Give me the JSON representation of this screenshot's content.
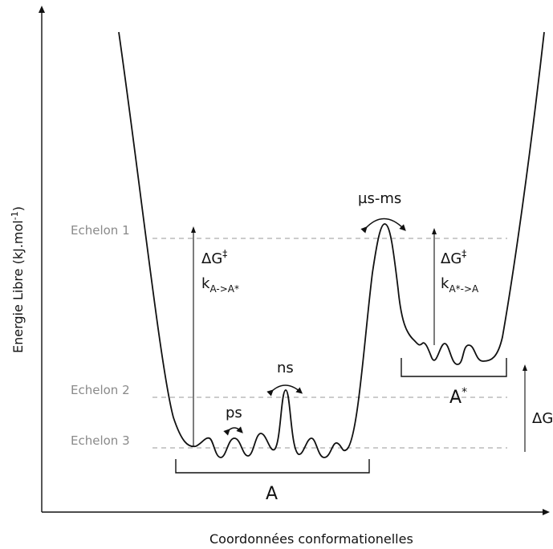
{
  "axes": {
    "x_label": "Coordonnées conformationelles",
    "y_label": "Energie Libre (kJ.mol",
    "y_label_sup": "-1",
    "y_label_tail": ")"
  },
  "levels": {
    "echelon1": "Echelon 1",
    "echelon2": "Echelon 2",
    "echelon3": "Echelon 3"
  },
  "timescales": {
    "ps": "ps",
    "ns": "ns",
    "us_ms": "µs-ms"
  },
  "barriers": {
    "left_dg": "ΔG",
    "left_dagger": "‡",
    "left_k": "k",
    "left_k_sub": "A->A*",
    "right_dg": "ΔG",
    "right_dagger": "‡",
    "right_k": "k",
    "right_k_sub": "A*->A"
  },
  "states": {
    "a": "A",
    "a_star": "A",
    "a_star_sup": "*"
  },
  "delta_g": "ΔG",
  "colors": {
    "curve": "#111111",
    "level_line": "#9a9a9a",
    "level_text": "#8a8a8a"
  }
}
